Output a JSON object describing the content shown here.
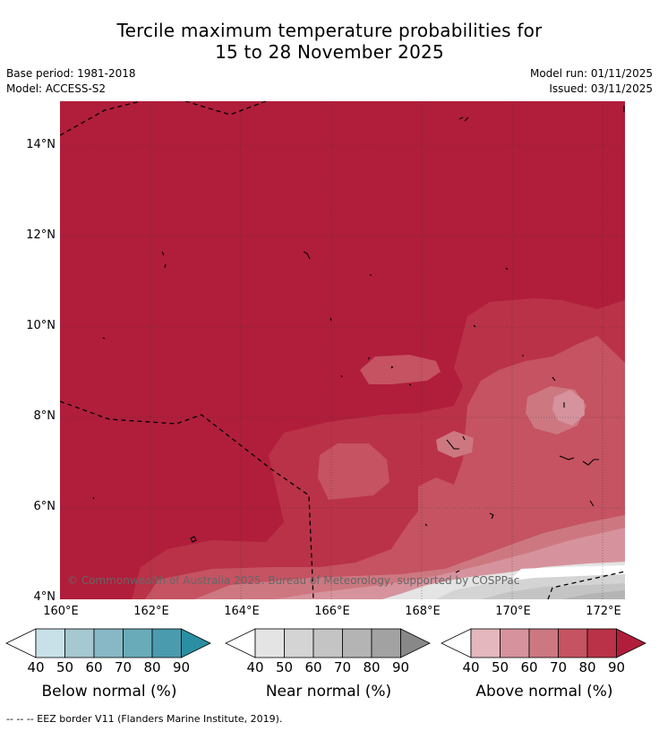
{
  "title": {
    "line1": "Tercile maximum temperature probabilities for",
    "line2": "15 to 28 November 2025"
  },
  "meta": {
    "base_period": "Base period: 1981-2018",
    "model": "Model: ACCESS-S2",
    "model_run": "Model run: 01/11/2025",
    "issued": "Issued: 03/11/2025"
  },
  "map": {
    "copyright": "© Commonwealth of Australia 2025. Bureau of Meteorology, supported by COSPPac",
    "lat_labels": [
      "14°N",
      "12°N",
      "10°N",
      "8°N",
      "6°N",
      "4°N"
    ],
    "lon_labels": [
      "160°E",
      "162°E",
      "164°E",
      "166°E",
      "168°E",
      "170°E",
      "172°E"
    ]
  },
  "legends": [
    {
      "label": "Below normal (%)",
      "ticks": [
        "40",
        "50",
        "60",
        "70",
        "80",
        "90"
      ],
      "colors": [
        "#ffffff",
        "#c8e1e8",
        "#a6c8d0",
        "#88b8c5",
        "#6aabba",
        "#4a9bae",
        "#2a8fa3"
      ]
    },
    {
      "label": "Near normal (%)",
      "ticks": [
        "40",
        "50",
        "60",
        "70",
        "80",
        "90"
      ],
      "colors": [
        "#ffffff",
        "#e4e4e4",
        "#d4d4d4",
        "#c4c4c4",
        "#b4b4b4",
        "#a2a2a2",
        "#888888"
      ]
    },
    {
      "label": "Above normal (%)",
      "ticks": [
        "40",
        "50",
        "60",
        "70",
        "80",
        "90"
      ],
      "colors": [
        "#ffffff",
        "#e3b7bd",
        "#d6939d",
        "#cd7881",
        "#c55362",
        "#ba3248",
        "#b01e3b"
      ]
    }
  ],
  "footer": "--  --  -- EEZ border V11 (Flanders Marine Institute, 2019)."
}
